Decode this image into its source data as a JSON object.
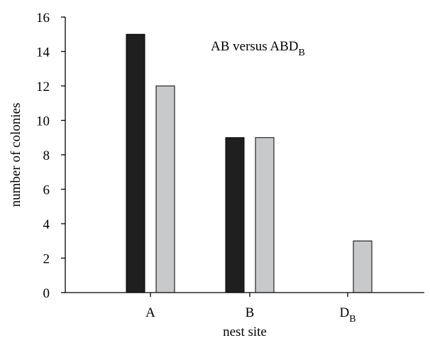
{
  "chart_data": {
    "type": "bar",
    "categories": [
      {
        "main": "A",
        "sub": ""
      },
      {
        "main": "B",
        "sub": ""
      },
      {
        "main": "D",
        "sub": "B"
      }
    ],
    "series": [
      {
        "values": [
          15,
          9,
          0
        ],
        "color": "#1f1f1f"
      },
      {
        "values": [
          12,
          9,
          3
        ],
        "color": "#c8c9cb"
      }
    ],
    "annotation": {
      "main": "AB versus ABD",
      "sub": "B"
    },
    "xlabel": "nest site",
    "ylabel": "number of colonies",
    "ylim": [
      0,
      16
    ],
    "yticks": [
      0,
      2,
      4,
      6,
      8,
      10,
      12,
      14,
      16
    ],
    "grid": false,
    "bar_edge_color": "#000000"
  }
}
